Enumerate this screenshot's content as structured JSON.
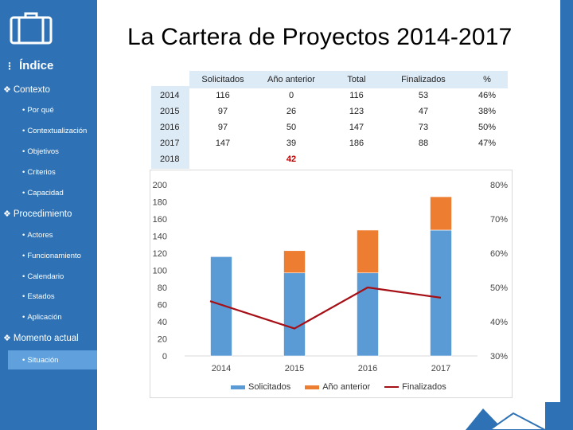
{
  "sidebar": {
    "index_title": "Índice",
    "sections": [
      {
        "label": "Contexto",
        "items": [
          "Por qué",
          "Contextualización",
          "Objetivos",
          "Criterios",
          "Capacidad"
        ]
      },
      {
        "label": "Procedimiento",
        "items": [
          "Actores",
          "Funcionamiento",
          "Calendario",
          "Estados",
          "Aplicación"
        ]
      },
      {
        "label": "Momento actual",
        "items": [
          "Situación"
        ]
      }
    ],
    "selected_item": "Situación"
  },
  "title": "La Cartera de Proyectos 2014-2017",
  "table": {
    "headers": [
      "Solicitados",
      "Año anterior",
      "Total",
      "Finalizados",
      "%"
    ],
    "rows": [
      {
        "year": "2014",
        "cells": [
          "116",
          "0",
          "116",
          "53",
          "46%"
        ]
      },
      {
        "year": "2015",
        "cells": [
          "97",
          "26",
          "123",
          "47",
          "38%"
        ]
      },
      {
        "year": "2016",
        "cells": [
          "97",
          "50",
          "147",
          "73",
          "50%"
        ]
      },
      {
        "year": "2017",
        "cells": [
          "147",
          "39",
          "186",
          "88",
          "47%"
        ]
      },
      {
        "year": "2018",
        "cells": [
          "",
          "42",
          "",
          "",
          ""
        ]
      }
    ],
    "highlight_value": "42"
  },
  "colors": {
    "sidebar": "#2e72b5",
    "solicitados": "#5b9bd5",
    "anio_anterior": "#ed7d31",
    "finalizados": "#a50f15",
    "table_fill": "#ddebf7"
  },
  "chart_data": {
    "type": "bar",
    "stacked": true,
    "categories": [
      "2014",
      "2015",
      "2016",
      "2017"
    ],
    "series": [
      {
        "name": "Solicitados",
        "type": "bar",
        "axis": "left",
        "values": [
          116,
          97,
          97,
          147
        ]
      },
      {
        "name": "Año anterior",
        "type": "bar",
        "axis": "left",
        "values": [
          0,
          26,
          50,
          39
        ]
      },
      {
        "name": "Finalizados",
        "type": "line",
        "axis": "right",
        "values": [
          46,
          38,
          50,
          47
        ]
      }
    ],
    "y_left": {
      "min": 0,
      "max": 200,
      "ticks": [
        "0",
        "20",
        "40",
        "60",
        "80",
        "100",
        "120",
        "140",
        "160",
        "180",
        "200"
      ]
    },
    "y_right": {
      "min": 30,
      "max": 80,
      "ticks": [
        "30%",
        "40%",
        "50%",
        "60%",
        "70%",
        "80%"
      ]
    },
    "legend": [
      "Solicitados",
      "Año anterior",
      "Finalizados"
    ],
    "legend_position": "bottom",
    "grid": false
  }
}
